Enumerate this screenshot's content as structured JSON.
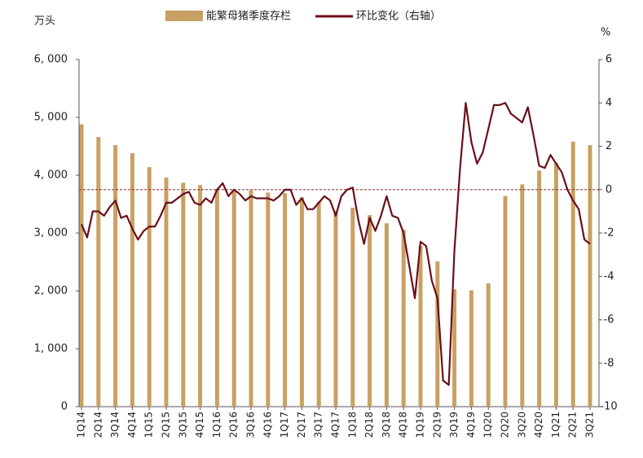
{
  "chart_data": {
    "type": "bar-line",
    "y_label": "万头",
    "y2_label": "%",
    "categories": [
      "1Q14",
      null,
      null,
      "2Q14",
      null,
      null,
      "3Q14",
      null,
      null,
      "4Q14",
      null,
      null,
      "1Q15",
      null,
      null,
      "2Q15",
      null,
      null,
      "3Q15",
      null,
      null,
      "4Q15",
      null,
      null,
      "1Q16",
      null,
      null,
      "2Q16",
      null,
      null,
      "3Q16",
      null,
      null,
      "4Q16",
      null,
      null,
      "1Q17",
      null,
      null,
      "2Q17",
      null,
      null,
      "3Q17",
      null,
      null,
      "4Q17",
      null,
      null,
      "1Q18",
      null,
      null,
      "2Q18",
      null,
      null,
      "3Q18",
      null,
      null,
      "4Q18",
      null,
      null,
      "1Q19",
      null,
      null,
      "2Q19",
      null,
      null,
      "3Q19",
      null,
      null,
      "4Q19",
      null,
      null,
      "1Q20",
      null,
      null,
      "2Q20",
      null,
      null,
      "3Q20",
      null,
      null,
      "4Q20",
      null,
      null,
      "1Q21",
      null,
      null,
      "2Q21",
      null,
      null,
      "3Q21"
    ],
    "series": [
      {
        "name": "能繁母猪季度存栏",
        "type": "bar",
        "color": "#c9a063",
        "values": [
          4880,
          null,
          null,
          4660,
          null,
          null,
          4520,
          null,
          null,
          4380,
          null,
          null,
          4140,
          null,
          null,
          3960,
          null,
          null,
          3870,
          null,
          null,
          3830,
          null,
          null,
          3760,
          null,
          null,
          3720,
          null,
          null,
          3740,
          null,
          null,
          3700,
          null,
          null,
          3690,
          null,
          null,
          3620,
          null,
          null,
          3540,
          null,
          null,
          3380,
          null,
          null,
          3440,
          null,
          null,
          3310,
          null,
          null,
          3170,
          null,
          null,
          3060,
          null,
          null,
          2780,
          null,
          null,
          2510,
          null,
          null,
          2030,
          null,
          null,
          2010,
          null,
          null,
          2130,
          null,
          null,
          3640,
          null,
          null,
          3840,
          null,
          null,
          4080,
          null,
          null,
          4210,
          null,
          null,
          4580,
          null,
          null,
          4520
        ]
      },
      {
        "name": "环比变化（右轴）",
        "type": "line",
        "axis": "y2",
        "color": "#6b0f1a",
        "values": [
          -1.6,
          -2.2,
          -1.0,
          -1.0,
          -1.2,
          -0.8,
          -0.5,
          -1.3,
          -1.2,
          -1.8,
          -2.3,
          -1.9,
          -1.7,
          -1.7,
          -1.2,
          -0.6,
          -0.6,
          -0.4,
          -0.2,
          -0.1,
          -0.6,
          -0.7,
          -0.4,
          -0.6,
          0,
          0.3,
          -0.3,
          0,
          -0.2,
          -0.5,
          -0.3,
          -0.4,
          -0.4,
          -0.4,
          -0.5,
          -0.3,
          0,
          0,
          -0.7,
          -0.4,
          -0.9,
          -0.9,
          -0.6,
          -0.3,
          -0.5,
          -1.2,
          -0.3,
          0,
          0.1,
          -1.4,
          -2.5,
          -1.3,
          -1.9,
          -1.2,
          -0.3,
          -1.2,
          -1.3,
          -2.0,
          -3.5,
          -5.0,
          -2.4,
          -2.6,
          -4.2,
          -5.0,
          -8.8,
          -9.0,
          -2.8,
          1.0,
          4.0,
          2.2,
          1.2,
          1.7,
          2.8,
          3.9,
          3.9,
          4.0,
          3.5,
          3.3,
          3.1,
          3.8,
          2.5,
          1.1,
          1.0,
          1.6,
          1.2,
          0.8,
          0,
          -0.5,
          -0.9,
          -2.3,
          -2.5
        ]
      }
    ],
    "ylim": [
      0,
      6000
    ],
    "yticks": [
      0,
      {
        "value": 1000,
        "label": "1, 000"
      },
      {
        "value": 2000,
        "label": "2, 000"
      },
      {
        "value": 3000,
        "label": "3, 000"
      },
      {
        "value": 4000,
        "label": "4, 000"
      },
      {
        "value": 5000,
        "label": "5, 000"
      },
      {
        "value": 6000,
        "label": "6, 000"
      }
    ],
    "y2lim": [
      -10,
      6
    ],
    "y2ticks": [
      -10,
      -8,
      -6,
      -4,
      -2,
      0,
      2,
      4,
      6
    ],
    "reference_line": {
      "value": 0,
      "axis": "y2",
      "color": "#8b2a2a"
    },
    "legend": "top"
  }
}
